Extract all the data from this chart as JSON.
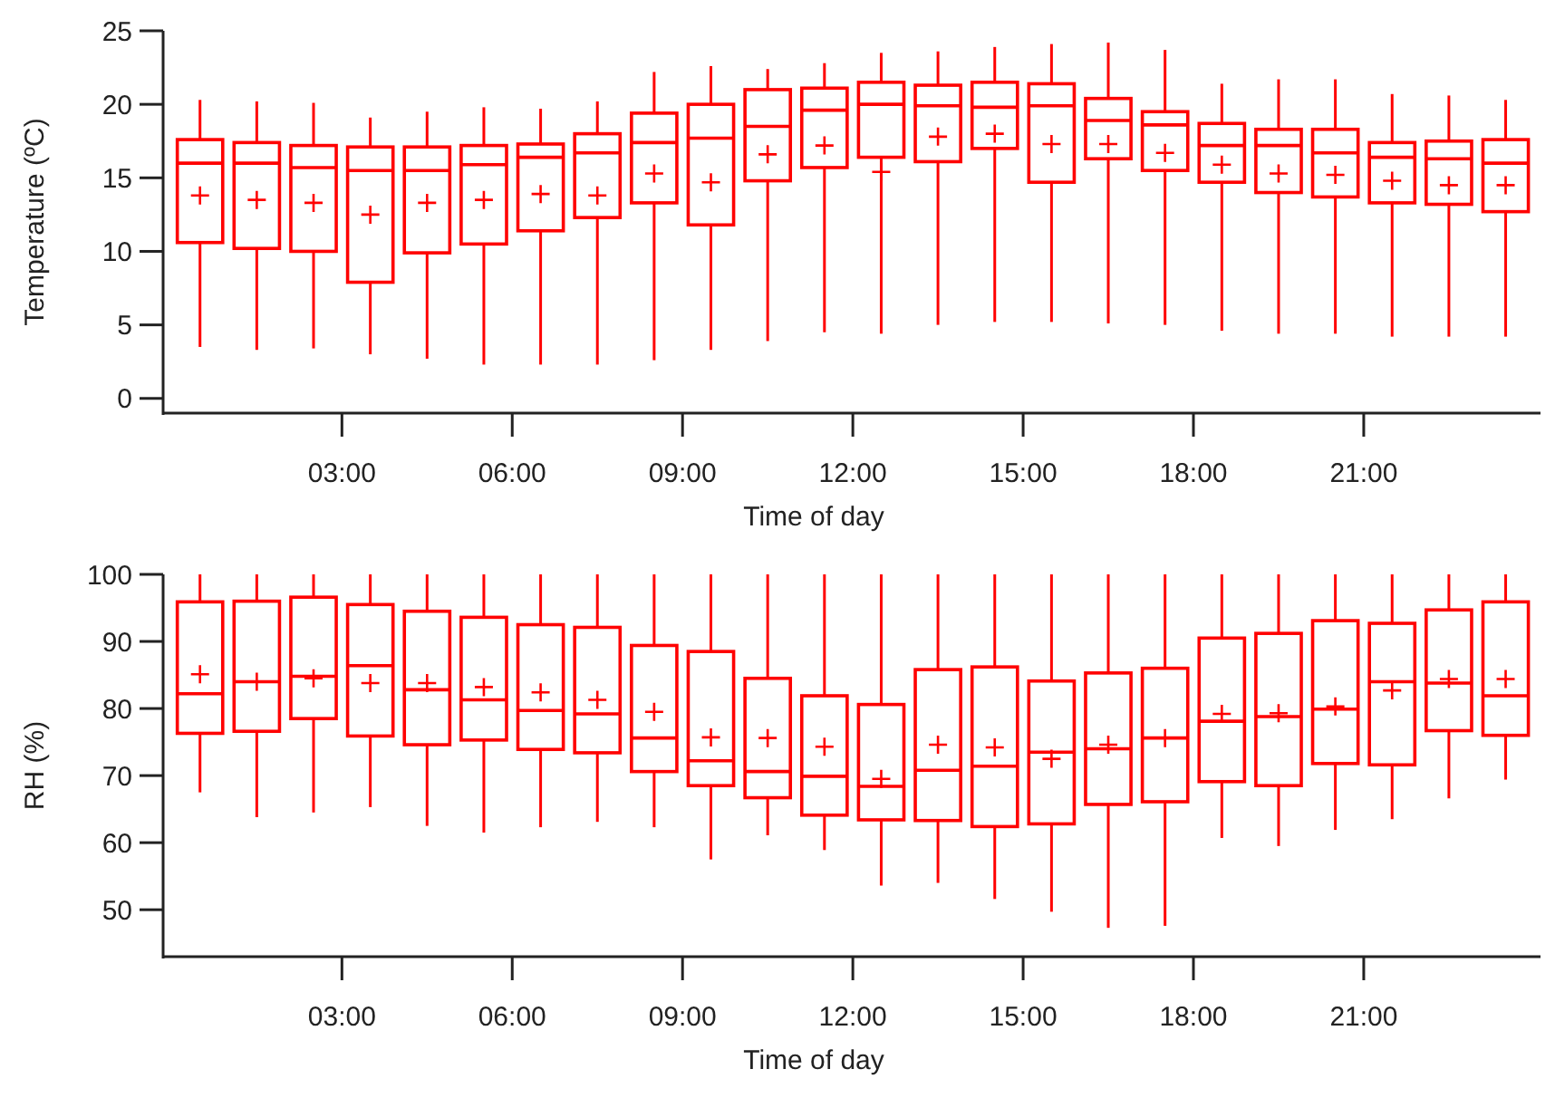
{
  "chart_data": [
    {
      "type": "box",
      "xlabel": "Time of day",
      "ylabel": "Temperature (ºC)",
      "xlim": [
        -0.15,
        24.05
      ],
      "xticks": [
        {
          "value": 3,
          "label": "03:00"
        },
        {
          "value": 6,
          "label": "06:00"
        },
        {
          "value": 9,
          "label": "09:00"
        },
        {
          "value": 12,
          "label": "12:00"
        },
        {
          "value": 15,
          "label": "15:00"
        },
        {
          "value": 18,
          "label": "18:00"
        },
        {
          "value": 21,
          "label": "21:00"
        }
      ],
      "ylim": [
        -1,
        25
      ],
      "yticks": [
        0,
        5,
        10,
        15,
        20,
        25
      ],
      "grid": false,
      "marker": "cross",
      "x": [
        0.5,
        1.5,
        2.5,
        3.5,
        4.5,
        5.5,
        6.5,
        7.5,
        8.5,
        9.5,
        10.5,
        11.5,
        12.5,
        13.5,
        14.5,
        15.5,
        16.5,
        17.5,
        18.5,
        19.5,
        20.5,
        21.5,
        22.5,
        23.5
      ],
      "series": [
        {
          "color": "#ff0000",
          "boxes": [
            {
              "low": 3.5,
              "q1": 10.6,
              "median": 16.0,
              "q3": 17.6,
              "high": 20.3,
              "mean": 13.8
            },
            {
              "low": 3.3,
              "q1": 10.2,
              "median": 16.0,
              "q3": 17.4,
              "high": 20.2,
              "mean": 13.5
            },
            {
              "low": 3.4,
              "q1": 10.0,
              "median": 15.7,
              "q3": 17.2,
              "high": 20.1,
              "mean": 13.3
            },
            {
              "low": 3.0,
              "q1": 7.9,
              "median": 15.5,
              "q3": 17.1,
              "high": 19.1,
              "mean": 12.5
            },
            {
              "low": 2.7,
              "q1": 9.9,
              "median": 15.5,
              "q3": 17.1,
              "high": 19.5,
              "mean": 13.3
            },
            {
              "low": 2.3,
              "q1": 10.5,
              "median": 15.9,
              "q3": 17.2,
              "high": 19.8,
              "mean": 13.5
            },
            {
              "low": 2.3,
              "q1": 11.4,
              "median": 16.4,
              "q3": 17.3,
              "high": 19.7,
              "mean": 13.9
            },
            {
              "low": 2.3,
              "q1": 12.3,
              "median": 16.7,
              "q3": 18.0,
              "high": 20.2,
              "mean": 13.8
            },
            {
              "low": 2.6,
              "q1": 13.3,
              "median": 17.4,
              "q3": 19.4,
              "high": 22.2,
              "mean": 15.3
            },
            {
              "low": 3.3,
              "q1": 11.8,
              "median": 17.7,
              "q3": 20.0,
              "high": 22.6,
              "mean": 14.7
            },
            {
              "low": 3.9,
              "q1": 14.8,
              "median": 18.5,
              "q3": 21.0,
              "high": 22.4,
              "mean": 16.6
            },
            {
              "low": 4.5,
              "q1": 15.7,
              "median": 19.6,
              "q3": 21.1,
              "high": 22.8,
              "mean": 17.2
            },
            {
              "low": 4.4,
              "q1": 16.4,
              "median": 20.0,
              "q3": 21.5,
              "high": 23.5,
              "mean": 15.4
            },
            {
              "low": 5.0,
              "q1": 16.1,
              "median": 19.9,
              "q3": 21.3,
              "high": 23.6,
              "mean": 17.8
            },
            {
              "low": 5.2,
              "q1": 17.0,
              "median": 19.8,
              "q3": 21.5,
              "high": 23.9,
              "mean": 18.0
            },
            {
              "low": 5.2,
              "q1": 14.7,
              "median": 19.9,
              "q3": 21.4,
              "high": 24.1,
              "mean": 17.3
            },
            {
              "low": 5.1,
              "q1": 16.3,
              "median": 18.9,
              "q3": 20.4,
              "high": 24.2,
              "mean": 17.3
            },
            {
              "low": 5.0,
              "q1": 15.5,
              "median": 18.6,
              "q3": 19.5,
              "high": 23.7,
              "mean": 16.7
            },
            {
              "low": 4.6,
              "q1": 14.7,
              "median": 17.2,
              "q3": 18.7,
              "high": 21.4,
              "mean": 15.9
            },
            {
              "low": 4.4,
              "q1": 14.0,
              "median": 17.2,
              "q3": 18.3,
              "high": 21.7,
              "mean": 15.3
            },
            {
              "low": 4.4,
              "q1": 13.7,
              "median": 16.7,
              "q3": 18.3,
              "high": 21.7,
              "mean": 15.2
            },
            {
              "low": 4.2,
              "q1": 13.3,
              "median": 16.4,
              "q3": 17.4,
              "high": 20.7,
              "mean": 14.8
            },
            {
              "low": 4.2,
              "q1": 13.2,
              "median": 16.3,
              "q3": 17.5,
              "high": 20.6,
              "mean": 14.5
            },
            {
              "low": 4.2,
              "q1": 12.7,
              "median": 16.0,
              "q3": 17.6,
              "high": 20.3,
              "mean": 14.5
            }
          ]
        }
      ]
    },
    {
      "type": "box",
      "xlabel": "Time of day",
      "ylabel": "RH (%)",
      "xlim": [
        -0.15,
        24.05
      ],
      "xticks": [
        {
          "value": 3,
          "label": "03:00"
        },
        {
          "value": 6,
          "label": "06:00"
        },
        {
          "value": 9,
          "label": "09:00"
        },
        {
          "value": 12,
          "label": "12:00"
        },
        {
          "value": 15,
          "label": "15:00"
        },
        {
          "value": 18,
          "label": "18:00"
        },
        {
          "value": 21,
          "label": "21:00"
        }
      ],
      "ylim": [
        43,
        100
      ],
      "yticks": [
        50,
        60,
        70,
        80,
        90,
        100
      ],
      "grid": false,
      "marker": "cross",
      "x": [
        0.5,
        1.5,
        2.5,
        3.5,
        4.5,
        5.5,
        6.5,
        7.5,
        8.5,
        9.5,
        10.5,
        11.5,
        12.5,
        13.5,
        14.5,
        15.5,
        16.5,
        17.5,
        18.5,
        19.5,
        20.5,
        21.5,
        22.5,
        23.5
      ],
      "series": [
        {
          "color": "#ff0000",
          "boxes": [
            {
              "low": 67.5,
              "q1": 76.3,
              "median": 82.2,
              "q3": 95.9,
              "high": 100,
              "mean": 85.1
            },
            {
              "low": 63.8,
              "q1": 76.6,
              "median": 84.0,
              "q3": 96.0,
              "high": 100,
              "mean": 84.0
            },
            {
              "low": 64.5,
              "q1": 78.5,
              "median": 84.8,
              "q3": 96.6,
              "high": 100,
              "mean": 84.5
            },
            {
              "low": 65.3,
              "q1": 75.9,
              "median": 86.4,
              "q3": 95.5,
              "high": 100,
              "mean": 83.8
            },
            {
              "low": 62.5,
              "q1": 74.6,
              "median": 82.8,
              "q3": 94.5,
              "high": 100,
              "mean": 83.8
            },
            {
              "low": 61.5,
              "q1": 75.3,
              "median": 81.3,
              "q3": 93.6,
              "high": 100,
              "mean": 83.2
            },
            {
              "low": 62.3,
              "q1": 73.9,
              "median": 79.7,
              "q3": 92.5,
              "high": 100,
              "mean": 82.4
            },
            {
              "low": 63.1,
              "q1": 73.4,
              "median": 79.2,
              "q3": 92.1,
              "high": 100,
              "mean": 81.3
            },
            {
              "low": 62.3,
              "q1": 70.6,
              "median": 75.6,
              "q3": 89.4,
              "high": 100,
              "mean": 79.5
            },
            {
              "low": 57.5,
              "q1": 68.5,
              "median": 72.2,
              "q3": 88.5,
              "high": 100,
              "mean": 75.7
            },
            {
              "low": 61.1,
              "q1": 66.7,
              "median": 70.6,
              "q3": 84.5,
              "high": 100,
              "mean": 75.6
            },
            {
              "low": 58.9,
              "q1": 64.1,
              "median": 69.9,
              "q3": 81.9,
              "high": 100,
              "mean": 74.3
            },
            {
              "low": 53.6,
              "q1": 63.4,
              "median": 68.4,
              "q3": 80.6,
              "high": 100,
              "mean": 69.5
            },
            {
              "low": 54.0,
              "q1": 63.3,
              "median": 70.8,
              "q3": 85.8,
              "high": 100,
              "mean": 74.6
            },
            {
              "low": 51.6,
              "q1": 62.4,
              "median": 71.4,
              "q3": 86.2,
              "high": 100,
              "mean": 74.2
            },
            {
              "low": 49.7,
              "q1": 62.8,
              "median": 73.5,
              "q3": 84.1,
              "high": 100,
              "mean": 72.5
            },
            {
              "low": 47.3,
              "q1": 65.7,
              "median": 74.0,
              "q3": 85.3,
              "high": 100,
              "mean": 74.6
            },
            {
              "low": 47.6,
              "q1": 66.1,
              "median": 75.6,
              "q3": 86.0,
              "high": 100,
              "mean": 75.6
            },
            {
              "low": 60.7,
              "q1": 69.1,
              "median": 78.1,
              "q3": 90.5,
              "high": 100,
              "mean": 79.2
            },
            {
              "low": 59.5,
              "q1": 68.5,
              "median": 78.8,
              "q3": 91.2,
              "high": 100,
              "mean": 79.3
            },
            {
              "low": 61.9,
              "q1": 71.8,
              "median": 79.9,
              "q3": 93.1,
              "high": 100,
              "mean": 80.3
            },
            {
              "low": 63.5,
              "q1": 71.6,
              "median": 84.0,
              "q3": 92.7,
              "high": 100,
              "mean": 82.7
            },
            {
              "low": 66.6,
              "q1": 76.7,
              "median": 83.8,
              "q3": 94.7,
              "high": 100,
              "mean": 84.4
            },
            {
              "low": 69.4,
              "q1": 76.0,
              "median": 81.9,
              "q3": 95.9,
              "high": 100,
              "mean": 84.4
            }
          ]
        }
      ]
    }
  ]
}
